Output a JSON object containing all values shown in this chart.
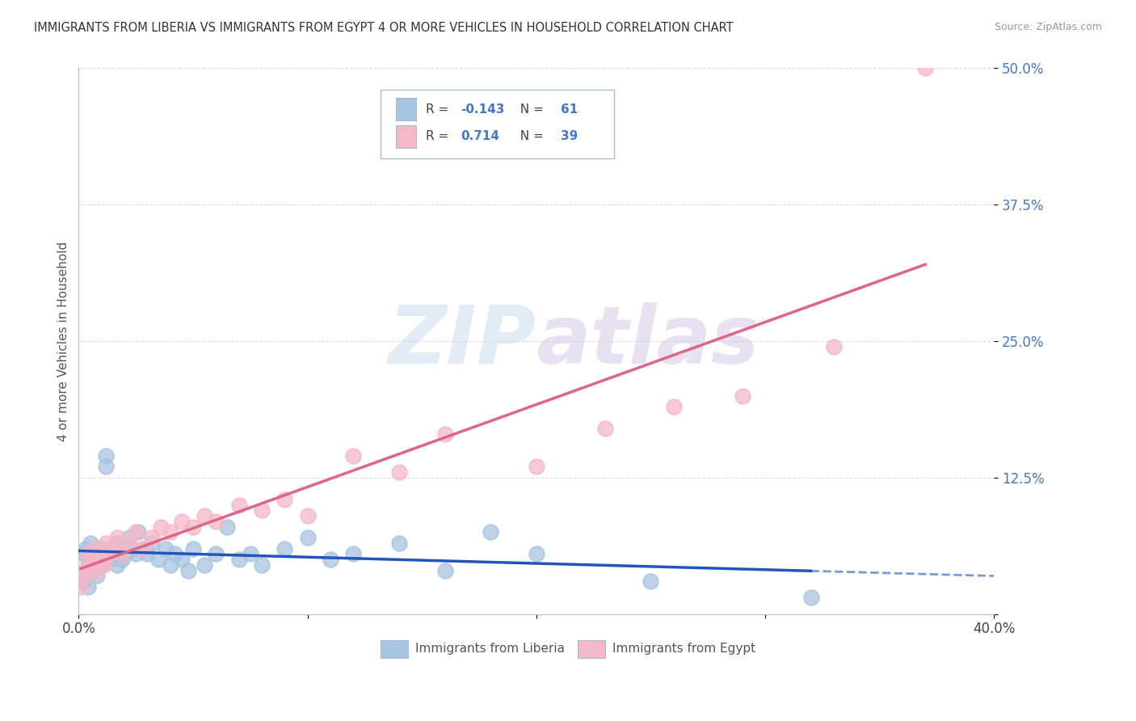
{
  "title": "IMMIGRANTS FROM LIBERIA VS IMMIGRANTS FROM EGYPT 4 OR MORE VEHICLES IN HOUSEHOLD CORRELATION CHART",
  "source": "Source: ZipAtlas.com",
  "ylabel": "4 or more Vehicles in Household",
  "xlim": [
    0.0,
    0.4
  ],
  "ylim": [
    0.0,
    0.5
  ],
  "liberia_R": -0.143,
  "liberia_N": 61,
  "egypt_R": 0.714,
  "egypt_N": 39,
  "liberia_color": "#a8c4e0",
  "egypt_color": "#f4b8c8",
  "liberia_line_color": "#2255bb",
  "egypt_line_color": "#dd6688",
  "background_color": "#ffffff",
  "grid_color": "#cccccc",
  "liberia_x": [
    0.001,
    0.002,
    0.002,
    0.003,
    0.003,
    0.004,
    0.004,
    0.005,
    0.005,
    0.006,
    0.006,
    0.007,
    0.007,
    0.008,
    0.008,
    0.009,
    0.009,
    0.01,
    0.01,
    0.011,
    0.012,
    0.012,
    0.013,
    0.014,
    0.015,
    0.016,
    0.017,
    0.018,
    0.019,
    0.02,
    0.021,
    0.022,
    0.023,
    0.025,
    0.026,
    0.028,
    0.03,
    0.032,
    0.035,
    0.038,
    0.04,
    0.042,
    0.045,
    0.048,
    0.05,
    0.055,
    0.06,
    0.065,
    0.07,
    0.075,
    0.08,
    0.09,
    0.1,
    0.11,
    0.12,
    0.14,
    0.16,
    0.18,
    0.2,
    0.25,
    0.32
  ],
  "liberia_y": [
    0.035,
    0.03,
    0.055,
    0.04,
    0.06,
    0.025,
    0.05,
    0.045,
    0.065,
    0.04,
    0.055,
    0.045,
    0.06,
    0.035,
    0.05,
    0.045,
    0.055,
    0.06,
    0.045,
    0.05,
    0.145,
    0.135,
    0.055,
    0.05,
    0.06,
    0.065,
    0.045,
    0.055,
    0.05,
    0.055,
    0.06,
    0.07,
    0.06,
    0.055,
    0.075,
    0.06,
    0.055,
    0.065,
    0.05,
    0.06,
    0.045,
    0.055,
    0.05,
    0.04,
    0.06,
    0.045,
    0.055,
    0.08,
    0.05,
    0.055,
    0.045,
    0.06,
    0.07,
    0.05,
    0.055,
    0.065,
    0.04,
    0.075,
    0.055,
    0.03,
    0.015
  ],
  "egypt_x": [
    0.001,
    0.002,
    0.003,
    0.004,
    0.005,
    0.006,
    0.007,
    0.008,
    0.009,
    0.01,
    0.011,
    0.012,
    0.013,
    0.015,
    0.017,
    0.019,
    0.022,
    0.025,
    0.028,
    0.032,
    0.036,
    0.04,
    0.045,
    0.05,
    0.055,
    0.06,
    0.07,
    0.08,
    0.09,
    0.1,
    0.12,
    0.14,
    0.16,
    0.2,
    0.23,
    0.26,
    0.29,
    0.33,
    0.37
  ],
  "egypt_y": [
    0.025,
    0.04,
    0.035,
    0.055,
    0.05,
    0.045,
    0.06,
    0.04,
    0.055,
    0.05,
    0.045,
    0.065,
    0.055,
    0.06,
    0.07,
    0.055,
    0.065,
    0.075,
    0.06,
    0.07,
    0.08,
    0.075,
    0.085,
    0.08,
    0.09,
    0.085,
    0.1,
    0.095,
    0.105,
    0.09,
    0.145,
    0.13,
    0.165,
    0.135,
    0.17,
    0.19,
    0.2,
    0.245,
    0.5
  ]
}
